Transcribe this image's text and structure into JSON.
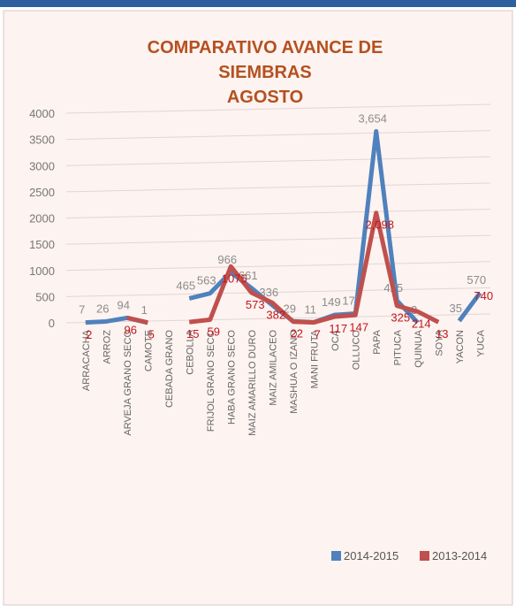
{
  "chart_data": {
    "type": "line",
    "title": [
      "COMPARATIVO AVANCE DE",
      "SIEMBRAS",
      "AGOSTO"
    ],
    "categories": [
      "ARRACACHA",
      "ARROZ",
      "ARVEJA GRANO SECO",
      "CAMOTE",
      "CEBADA GRANO",
      "CEBOLLA",
      "FRIJOL GRANO SECO",
      "HABA GRANO SECO",
      "MAIZ AMARILLO DURO",
      "MAIZ AMILACEO",
      "MASHUA O IZANO",
      "MANI FRUTA",
      "OCA",
      "OLLUCO",
      "PAPA",
      "PITUCA",
      "QUINUA",
      "SOYA",
      "YACON",
      "YUCA"
    ],
    "series": [
      {
        "name": "2014-2015",
        "color": "#4f81bd",
        "label_color": "#8c8c8c",
        "values": [
          7,
          26,
          94,
          1,
          null,
          465,
          563,
          966,
          661,
          336,
          29,
          11,
          149,
          177,
          3654,
          425,
          3,
          null,
          35,
          570
        ],
        "value_labels": [
          "7",
          "26",
          "94",
          "1",
          null,
          "465",
          "563",
          "966",
          "661",
          "336",
          "29",
          "11",
          "149",
          "177",
          "3,654",
          "425",
          "3",
          null,
          "35",
          "570"
        ]
      },
      {
        "name": "2013-2014",
        "color": "#c0504d",
        "label_color": "#c0161d",
        "values": [
          2,
          null,
          96,
          5,
          null,
          15,
          59,
          1075,
          573,
          382,
          22,
          7,
          117,
          147,
          2098,
          325,
          214,
          13,
          null,
          740
        ],
        "value_labels": [
          "2",
          null,
          "96",
          "5",
          null,
          "15",
          "59",
          "1075",
          "573",
          "382",
          "22",
          "7",
          "117",
          "147",
          "2,098",
          "325",
          "214",
          "13",
          null,
          "740"
        ]
      }
    ],
    "ylim": [
      0,
      4000
    ],
    "yticks": [
      0,
      500,
      1000,
      1500,
      2000,
      2500,
      3000,
      3500,
      4000
    ],
    "grid": true,
    "legend": "bottom-right"
  }
}
